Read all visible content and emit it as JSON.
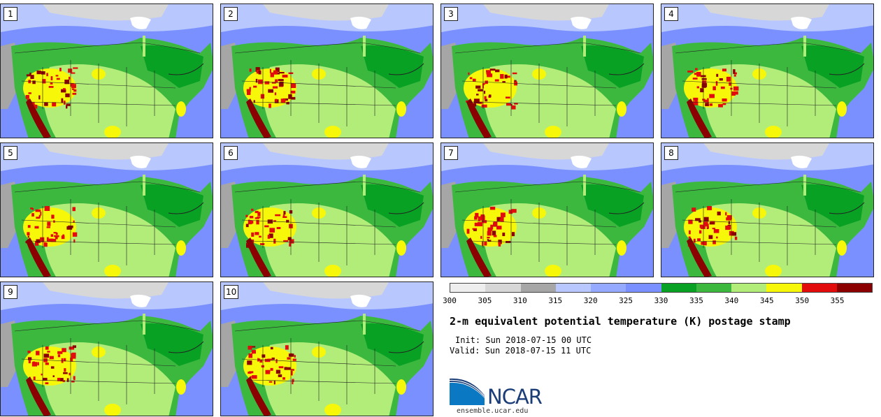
{
  "panels": [
    {
      "label": "1"
    },
    {
      "label": "2"
    },
    {
      "label": "3"
    },
    {
      "label": "4"
    },
    {
      "label": "5"
    },
    {
      "label": "6"
    },
    {
      "label": "7"
    },
    {
      "label": "8"
    },
    {
      "label": "9"
    },
    {
      "label": "10"
    }
  ],
  "colorbar": {
    "colors": [
      "#eeeeee",
      "#d7d7d7",
      "#a6a6a6",
      "#b8c8ff",
      "#95aaff",
      "#7a90ff",
      "#08a124",
      "#3cb83f",
      "#b2ed7a",
      "#f7f70a",
      "#e20c0c",
      "#8b0000"
    ],
    "ticks": [
      "300",
      "305",
      "310",
      "315",
      "320",
      "325",
      "330",
      "335",
      "340",
      "345",
      "350",
      "355"
    ]
  },
  "title": "2-m equivalent potential temperature (K) postage stamp",
  "init": "Init: Sun 2018-07-15 00 UTC",
  "valid": "Valid: Sun 2018-07-15 11 UTC",
  "logo": {
    "name": "NCAR",
    "url": "ensemble.ucar.edu"
  }
}
